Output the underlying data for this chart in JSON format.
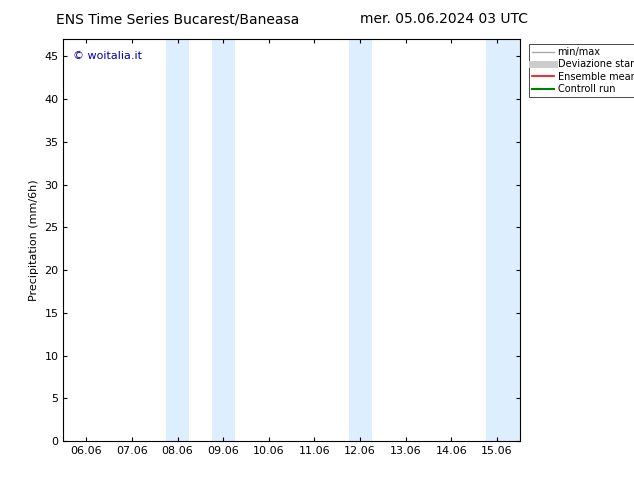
{
  "title_left": "ENS Time Series Bucarest/Baneasa",
  "title_right": "mer. 05.06.2024 03 UTC",
  "ylabel": "Precipitation (mm/6h)",
  "watermark": "© woitalia.it",
  "xtick_labels": [
    "06.06",
    "07.06",
    "08.06",
    "09.06",
    "10.06",
    "11.06",
    "12.06",
    "13.06",
    "14.06",
    "15.06"
  ],
  "xtick_positions": [
    0,
    1,
    2,
    3,
    4,
    5,
    6,
    7,
    8,
    9
  ],
  "ytick_labels": [
    "0",
    "5",
    "10",
    "15",
    "20",
    "25",
    "30",
    "35",
    "40",
    "45"
  ],
  "ytick_positions": [
    0,
    5,
    10,
    15,
    20,
    25,
    30,
    35,
    40,
    45
  ],
  "ylim": [
    0,
    47
  ],
  "xlim": [
    -0.5,
    9.5
  ],
  "shaded_bands": [
    {
      "xmin": 1.75,
      "xmax": 2.25,
      "color": "#ddeeff"
    },
    {
      "xmin": 2.75,
      "xmax": 3.25,
      "color": "#ddeeff"
    },
    {
      "xmin": 5.75,
      "xmax": 6.25,
      "color": "#ddeeff"
    },
    {
      "xmin": 8.75,
      "xmax": 9.5,
      "color": "#ddeeff"
    }
  ],
  "legend_entries": [
    {
      "label": "min/max",
      "color": "#aaaaaa",
      "linestyle": "-",
      "linewidth": 1.0
    },
    {
      "label": "Deviazione standard",
      "color": "#cccccc",
      "linestyle": "-",
      "linewidth": 5.0
    },
    {
      "label": "Ensemble mean run",
      "color": "#ff0000",
      "linestyle": "-",
      "linewidth": 1.2
    },
    {
      "label": "Controll run",
      "color": "#008000",
      "linestyle": "-",
      "linewidth": 1.5
    }
  ],
  "background_color": "#ffffff",
  "font_size_title": 10,
  "font_size_tick": 8,
  "font_size_ylabel": 8,
  "font_size_watermark": 8,
  "font_size_legend": 7,
  "watermark_color": "#0000bb"
}
